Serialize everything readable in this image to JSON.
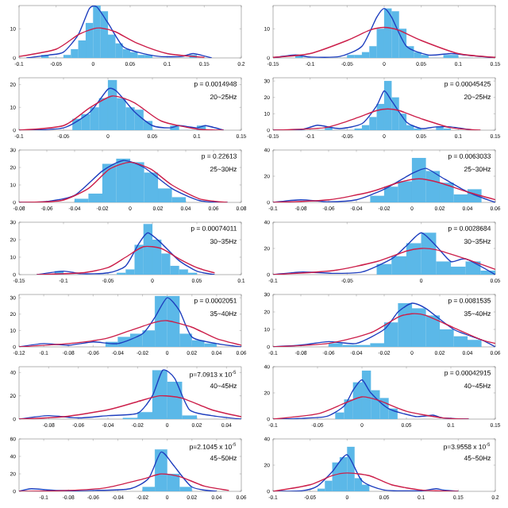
{
  "chart_data": [
    {
      "type": "histogram",
      "color": "#5bb8e8",
      "xlim": [
        -0.1,
        0.2
      ],
      "xticks": [
        -0.1,
        -0.05,
        0,
        0.05,
        0.1,
        0.15,
        0.2
      ],
      "ylim": [
        0,
        18
      ],
      "yticks": [
        0,
        10
      ],
      "bins": [
        -0.07,
        -0.06,
        -0.05,
        -0.04,
        -0.03,
        -0.02,
        -0.01,
        0,
        0.01,
        0.02,
        0.03,
        0.04,
        0.05,
        0.06,
        0.07,
        0.08,
        0.09,
        0.1,
        0.11,
        0.12,
        0.13,
        0.14
      ],
      "values": [
        1,
        0,
        0,
        1,
        3,
        6,
        12,
        18,
        16,
        8,
        5,
        3,
        2,
        1,
        1,
        0,
        0,
        0,
        0,
        0,
        1
      ],
      "series": [
        {
          "type": "line",
          "color": "#1f3fbf",
          "x": [
            -0.09,
            -0.06,
            -0.04,
            -0.02,
            -0.005,
            0.005,
            0.02,
            0.04,
            0.06,
            0.09,
            0.12,
            0.135,
            0.16
          ],
          "values": [
            0,
            1,
            2,
            8,
            17,
            17.5,
            12,
            4,
            2,
            0.5,
            0.5,
            1.5,
            0
          ]
        },
        {
          "type": "line",
          "color": "#cc1f4a",
          "x": [
            -0.1,
            -0.05,
            -0.02,
            0,
            0.01,
            0.03,
            0.06,
            0.1,
            0.15
          ],
          "values": [
            0.5,
            3,
            8,
            10,
            10.3,
            9,
            5,
            1.5,
            0.2
          ]
        }
      ]
    },
    {
      "type": "histogram",
      "color": "#5bb8e8",
      "xlim": [
        -0.15,
        0.15
      ],
      "xticks": [
        -0.15,
        -0.1,
        -0.05,
        0,
        0.05,
        0.1,
        0.15
      ],
      "ylim": [
        0,
        18
      ],
      "yticks": [
        0,
        10
      ],
      "bins": [
        -0.12,
        -0.11,
        -0.1,
        -0.09,
        -0.08,
        -0.07,
        -0.06,
        -0.05,
        -0.04,
        -0.03,
        -0.02,
        -0.01,
        0,
        0.01,
        0.02,
        0.03,
        0.04,
        0.05,
        0.06,
        0.07,
        0.08,
        0.09,
        0.1,
        0.11,
        0.12
      ],
      "values": [
        1,
        0,
        0,
        0,
        0,
        0,
        0,
        1,
        1,
        2,
        4,
        10,
        17,
        16,
        10,
        4,
        2,
        1,
        0,
        0,
        1,
        1,
        0,
        0
      ],
      "series": [
        {
          "type": "line",
          "color": "#1f3fbf",
          "x": [
            -0.15,
            -0.12,
            -0.1,
            -0.06,
            -0.03,
            -0.01,
            0,
            0.01,
            0.03,
            0.06,
            0.09,
            0.11,
            0.15
          ],
          "values": [
            0,
            1,
            0.3,
            0.5,
            4,
            14,
            17,
            14,
            4,
            1,
            1.5,
            1,
            0
          ]
        },
        {
          "type": "line",
          "color": "#cc1f4a",
          "x": [
            -0.15,
            -0.1,
            -0.05,
            -0.02,
            0,
            0.02,
            0.05,
            0.1,
            0.15
          ],
          "values": [
            0.2,
            1.5,
            6,
            9.5,
            10.5,
            9.5,
            6,
            1.5,
            0.2
          ]
        }
      ]
    },
    {
      "type": "histogram",
      "color": "#5bb8e8",
      "xlim": [
        -0.1,
        0.15
      ],
      "xticks": [
        -0.1,
        -0.05,
        0,
        0.05,
        0.1,
        0.15
      ],
      "ylim": [
        0,
        23
      ],
      "yticks": [
        0,
        10,
        20
      ],
      "annotations": [
        "p = 0.0014948",
        "20~25Hz"
      ],
      "bins": [
        -0.04,
        -0.03,
        -0.02,
        -0.01,
        0,
        0.01,
        0.02,
        0.03,
        0.04,
        0.05,
        0.06,
        0.07,
        0.08,
        0.09,
        0.1,
        0.11
      ],
      "values": [
        5,
        7,
        10,
        14,
        22,
        14,
        10,
        9,
        4,
        0,
        0,
        2,
        0,
        0,
        2
      ],
      "series": [
        {
          "type": "line",
          "color": "#1f3fbf",
          "x": [
            -0.1,
            -0.05,
            -0.02,
            0,
            0.01,
            0.03,
            0.05,
            0.07,
            0.08,
            0.1,
            0.11,
            0.13
          ],
          "values": [
            0,
            1,
            8,
            18,
            17,
            8,
            2,
            1,
            2,
            1,
            2,
            0
          ]
        },
        {
          "type": "line",
          "color": "#cc1f4a",
          "x": [
            -0.1,
            -0.05,
            -0.02,
            0.005,
            0.03,
            0.06,
            0.1,
            0.13
          ],
          "values": [
            0,
            2,
            10,
            15,
            12,
            4,
            0.5,
            0
          ]
        }
      ]
    },
    {
      "type": "histogram",
      "color": "#5bb8e8",
      "xlim": [
        -0.15,
        0.15
      ],
      "xticks": [
        -0.15,
        -0.1,
        -0.05,
        0,
        0.05,
        0.1,
        0.15
      ],
      "ylim": [
        0,
        32
      ],
      "yticks": [
        0,
        10,
        20,
        30
      ],
      "annotations": [
        "p = 0.00045425",
        "20~25Hz"
      ],
      "bins": [
        -0.09,
        -0.08,
        -0.07,
        -0.06,
        -0.05,
        -0.04,
        -0.03,
        -0.02,
        -0.01,
        0,
        0.01,
        0.02,
        0.03,
        0.04,
        0.05,
        0.06,
        0.07,
        0.08,
        0.09
      ],
      "values": [
        0,
        2,
        0,
        0,
        0,
        1,
        3,
        8,
        16,
        30,
        20,
        10,
        3,
        1,
        0,
        0,
        2,
        1
      ],
      "series": [
        {
          "type": "line",
          "color": "#1f3fbf",
          "x": [
            -0.15,
            -0.11,
            -0.09,
            -0.06,
            -0.03,
            -0.01,
            0,
            0.01,
            0.03,
            0.05,
            0.07,
            0.09,
            0.12
          ],
          "values": [
            0,
            0.5,
            3,
            1,
            4,
            15,
            24,
            18,
            5,
            1,
            2,
            2,
            0
          ]
        },
        {
          "type": "line",
          "color": "#cc1f4a",
          "x": [
            -0.15,
            -0.08,
            -0.04,
            -0.01,
            0.005,
            0.02,
            0.05,
            0.09,
            0.13
          ],
          "values": [
            0,
            1.5,
            7,
            12,
            13,
            12,
            7,
            1.5,
            0
          ]
        }
      ]
    },
    {
      "type": "histogram",
      "color": "#5bb8e8",
      "xlim": [
        -0.08,
        0.08
      ],
      "xticks": [
        -0.08,
        -0.06,
        -0.04,
        -0.02,
        0,
        0.02,
        0.04,
        0.06,
        0.08
      ],
      "ylim": [
        0,
        30
      ],
      "yticks": [
        0,
        10,
        20,
        30
      ],
      "annotations": [
        "p = 0.22613",
        "25~30Hz"
      ],
      "bins": [
        -0.04,
        -0.03,
        -0.02,
        -0.01,
        0,
        0.01,
        0.02,
        0.03,
        0.04
      ],
      "values": [
        2,
        5,
        22,
        25,
        23,
        17,
        8,
        3
      ],
      "series": [
        {
          "type": "line",
          "color": "#1f3fbf",
          "x": [
            -0.08,
            -0.06,
            -0.04,
            -0.02,
            -0.005,
            0.01,
            0.03,
            0.05,
            0.07
          ],
          "values": [
            0,
            0.5,
            4,
            18,
            24,
            20,
            8,
            1,
            0
          ]
        },
        {
          "type": "line",
          "color": "#cc1f4a",
          "x": [
            -0.08,
            -0.05,
            -0.03,
            -0.015,
            0,
            0.015,
            0.03,
            0.05,
            0.07
          ],
          "values": [
            0,
            1,
            8,
            19,
            23,
            19,
            10,
            2,
            0
          ]
        }
      ]
    },
    {
      "type": "histogram",
      "color": "#5bb8e8",
      "xlim": [
        -0.1,
        0.06
      ],
      "xticks": [
        -0.1,
        -0.08,
        -0.06,
        -0.04,
        -0.02,
        0,
        0.02,
        0.04,
        0.06
      ],
      "ylim": [
        0,
        40
      ],
      "yticks": [
        0,
        20,
        40
      ],
      "annotations": [
        "p = 0.0063033",
        "25~30Hz"
      ],
      "bins": [
        -0.03,
        -0.02,
        -0.01,
        0,
        0.01,
        0.02,
        0.03,
        0.04,
        0.05
      ],
      "values": [
        5,
        12,
        16,
        34,
        24,
        15,
        6,
        10
      ],
      "series": [
        {
          "type": "line",
          "color": "#1f3fbf",
          "x": [
            -0.1,
            -0.08,
            -0.06,
            -0.04,
            -0.02,
            0,
            0.01,
            0.02,
            0.04,
            0.06
          ],
          "values": [
            0,
            2,
            0.5,
            2,
            10,
            22,
            26,
            20,
            8,
            0
          ]
        },
        {
          "type": "line",
          "color": "#cc1f4a",
          "x": [
            -0.1,
            -0.06,
            -0.03,
            -0.01,
            0.005,
            0.02,
            0.04,
            0.06
          ],
          "values": [
            0,
            2,
            8,
            15,
            18,
            15,
            8,
            2
          ]
        }
      ]
    },
    {
      "type": "histogram",
      "color": "#5bb8e8",
      "xlim": [
        -0.15,
        0.1
      ],
      "xticks": [
        -0.15,
        -0.1,
        -0.05,
        0,
        0.05,
        0.1
      ],
      "ylim": [
        0,
        30
      ],
      "yticks": [
        0,
        10,
        20,
        30
      ],
      "annotations": [
        "p = 0.00074011",
        "30~35Hz"
      ],
      "bins": [
        -0.11,
        -0.1,
        -0.09,
        -0.08,
        -0.07,
        -0.06,
        -0.05,
        -0.04,
        -0.03,
        -0.02,
        -0.01,
        0,
        0.01,
        0.02,
        0.03,
        0.04,
        0.05
      ],
      "values": [
        2,
        0,
        0,
        0,
        0,
        0,
        0,
        1,
        3,
        17,
        29,
        20,
        12,
        5,
        3,
        1
      ],
      "series": [
        {
          "type": "line",
          "color": "#1f3fbf",
          "x": [
            -0.13,
            -0.1,
            -0.08,
            -0.05,
            -0.03,
            -0.015,
            -0.005,
            0.01,
            0.03,
            0.05,
            0.07
          ],
          "values": [
            0,
            2,
            0.5,
            1,
            5,
            18,
            24,
            18,
            8,
            2,
            0
          ]
        },
        {
          "type": "line",
          "color": "#cc1f4a",
          "x": [
            -0.13,
            -0.08,
            -0.05,
            -0.03,
            -0.01,
            0.01,
            0.03,
            0.05,
            0.07
          ],
          "values": [
            0,
            1,
            4,
            10,
            16,
            15,
            9,
            4,
            1
          ]
        }
      ]
    },
    {
      "type": "histogram",
      "color": "#5bb8e8",
      "xlim": [
        -0.1,
        0.05
      ],
      "xticks": [
        -0.1,
        -0.05,
        0,
        0.05
      ],
      "ylim": [
        0,
        40
      ],
      "yticks": [
        0,
        20,
        40
      ],
      "annotations": [
        "p = 0.0028684",
        "30~35Hz"
      ],
      "bins": [
        -0.03,
        -0.02,
        -0.01,
        0,
        0.01,
        0.02,
        0.03,
        0.04,
        0.05
      ],
      "values": [
        8,
        14,
        24,
        32,
        10,
        6,
        10,
        3
      ],
      "series": [
        {
          "type": "line",
          "color": "#1f3fbf",
          "x": [
            -0.1,
            -0.08,
            -0.06,
            -0.04,
            -0.02,
            -0.01,
            0,
            0.01,
            0.02,
            0.03,
            0.05
          ],
          "values": [
            0,
            2,
            1,
            2,
            12,
            22,
            32,
            22,
            10,
            12,
            0
          ]
        },
        {
          "type": "line",
          "color": "#cc1f4a",
          "x": [
            -0.1,
            -0.06,
            -0.03,
            -0.01,
            0,
            0.01,
            0.03,
            0.05
          ],
          "values": [
            0,
            3,
            10,
            18,
            20,
            19,
            12,
            4
          ]
        }
      ]
    },
    {
      "type": "histogram",
      "color": "#5bb8e8",
      "xlim": [
        -0.12,
        0.06
      ],
      "xticks": [
        -0.12,
        -0.1,
        -0.08,
        -0.06,
        -0.04,
        -0.02,
        0,
        0.02,
        0.04,
        0.06
      ],
      "ylim": [
        0,
        32
      ],
      "yticks": [
        0,
        10,
        20,
        30
      ],
      "annotations": [
        "p = 0.0002051",
        "35~40Hz"
      ],
      "bins": [
        -0.05,
        -0.04,
        -0.03,
        -0.02,
        -0.01,
        0,
        0.01,
        0.02,
        0.03,
        0.04
      ],
      "values": [
        3,
        6,
        8,
        10,
        31,
        31,
        8,
        4,
        2
      ],
      "series": [
        {
          "type": "line",
          "color": "#1f3fbf",
          "x": [
            -0.12,
            -0.1,
            -0.08,
            -0.06,
            -0.04,
            -0.02,
            -0.01,
            0,
            0.01,
            0.02,
            0.04,
            0.06
          ],
          "values": [
            0,
            2,
            1,
            3,
            2,
            8,
            18,
            30,
            22,
            6,
            2,
            0
          ]
        },
        {
          "type": "line",
          "color": "#cc1f4a",
          "x": [
            -0.12,
            -0.08,
            -0.05,
            -0.03,
            -0.01,
            0,
            0.02,
            0.04,
            0.06
          ],
          "values": [
            0,
            2,
            5,
            10,
            15,
            16,
            12,
            5,
            1
          ]
        }
      ]
    },
    {
      "type": "histogram",
      "color": "#5bb8e8",
      "xlim": [
        -0.1,
        0.06
      ],
      "xticks": [
        -0.1,
        -0.08,
        -0.06,
        -0.04,
        -0.02,
        0,
        0.02,
        0.04,
        0.06
      ],
      "ylim": [
        0,
        30
      ],
      "yticks": [
        0,
        10,
        20,
        30
      ],
      "annotations": [
        "p = 0.0081535",
        "35~40Hz"
      ],
      "bins": [
        -0.06,
        -0.05,
        -0.04,
        -0.03,
        -0.02,
        -0.01,
        0,
        0.01,
        0.02,
        0.03,
        0.04,
        0.05
      ],
      "values": [
        2,
        1,
        1,
        2,
        14,
        25,
        22,
        18,
        10,
        6,
        4
      ],
      "series": [
        {
          "type": "line",
          "color": "#1f3fbf",
          "x": [
            -0.1,
            -0.08,
            -0.06,
            -0.04,
            -0.02,
            -0.01,
            0,
            0.01,
            0.03,
            0.05,
            0.06
          ],
          "values": [
            0,
            1,
            3,
            2,
            10,
            20,
            25,
            22,
            10,
            4,
            0
          ]
        },
        {
          "type": "line",
          "color": "#cc1f4a",
          "x": [
            -0.1,
            -0.06,
            -0.03,
            -0.01,
            0,
            0.01,
            0.03,
            0.05,
            0.06
          ],
          "values": [
            0,
            2,
            8,
            17,
            19,
            18,
            11,
            4,
            2
          ]
        }
      ]
    },
    {
      "type": "histogram",
      "color": "#5bb8e8",
      "xlim": [
        -0.1,
        0.05
      ],
      "xticks": [
        -0.08,
        -0.06,
        -0.04,
        -0.02,
        0,
        0.02,
        0.04
      ],
      "ylim": [
        0,
        45
      ],
      "yticks": [
        0,
        20,
        40
      ],
      "annotations": [
        "p=7.0913 x 10$^{-5}$",
        "40~45Hz"
      ],
      "bins": [
        -0.03,
        -0.02,
        -0.01,
        0,
        0.01,
        0.02
      ],
      "values": [
        1,
        6,
        42,
        32,
        3
      ],
      "series": [
        {
          "type": "line",
          "color": "#1f3fbf",
          "x": [
            -0.1,
            -0.08,
            -0.06,
            -0.04,
            -0.02,
            -0.01,
            -0.003,
            0.005,
            0.015,
            0.03,
            0.05
          ],
          "values": [
            0,
            3,
            1,
            3,
            5,
            20,
            42,
            35,
            8,
            3,
            0
          ]
        },
        {
          "type": "line",
          "color": "#cc1f4a",
          "x": [
            -0.1,
            -0.07,
            -0.04,
            -0.02,
            -0.005,
            0.01,
            0.03,
            0.05
          ],
          "values": [
            0,
            2,
            8,
            15,
            20,
            18,
            8,
            2
          ]
        }
      ]
    },
    {
      "type": "histogram",
      "color": "#5bb8e8",
      "xlim": [
        -0.1,
        0.15
      ],
      "xticks": [
        -0.1,
        -0.05,
        0,
        0.05,
        0.1,
        0.15
      ],
      "ylim": [
        0,
        40
      ],
      "yticks": [
        0,
        20,
        40
      ],
      "annotations": [
        "p = 0.00042915",
        "40~45Hz"
      ],
      "bins": [
        -0.03,
        -0.02,
        -0.01,
        0,
        0.01,
        0.02,
        0.03,
        0.04
      ],
      "values": [
        5,
        15,
        28,
        37,
        22,
        16,
        8
      ],
      "series": [
        {
          "type": "line",
          "color": "#1f3fbf",
          "x": [
            -0.1,
            -0.07,
            -0.04,
            -0.02,
            -0.01,
            0,
            0.01,
            0.03,
            0.06,
            0.08,
            0.09,
            0.12
          ],
          "values": [
            0,
            0.5,
            2,
            10,
            22,
            30,
            20,
            8,
            2,
            3,
            1,
            0
          ]
        },
        {
          "type": "line",
          "color": "#cc1f4a",
          "x": [
            -0.1,
            -0.05,
            -0.02,
            0,
            0.02,
            0.05,
            0.09,
            0.12
          ],
          "values": [
            0,
            4,
            12,
            17,
            14,
            6,
            1,
            0
          ]
        }
      ]
    },
    {
      "type": "histogram",
      "color": "#5bb8e8",
      "xlim": [
        -0.12,
        0.06
      ],
      "xticks": [
        -0.1,
        -0.08,
        -0.06,
        -0.04,
        -0.02,
        0,
        0.02,
        0.04,
        0.06
      ],
      "ylim": [
        0,
        60
      ],
      "yticks": [
        0,
        20,
        40,
        60
      ],
      "annotations": [
        "p=2.1045 x 10$^{-5}$",
        "45~50Hz"
      ],
      "bins": [
        -0.02,
        -0.01,
        0,
        0.01,
        0.02
      ],
      "values": [
        5,
        48,
        20,
        5
      ],
      "series": [
        {
          "type": "line",
          "color": "#1f3fbf",
          "x": [
            -0.12,
            -0.11,
            -0.09,
            -0.06,
            -0.03,
            -0.015,
            -0.005,
            0.005,
            0.02,
            0.04
          ],
          "values": [
            0,
            3,
            1,
            1,
            3,
            15,
            45,
            30,
            5,
            0
          ]
        },
        {
          "type": "line",
          "color": "#cc1f4a",
          "x": [
            -0.12,
            -0.08,
            -0.05,
            -0.02,
            -0.005,
            0.01,
            0.03,
            0.05
          ],
          "values": [
            0,
            1,
            4,
            14,
            20,
            17,
            6,
            1
          ]
        }
      ]
    },
    {
      "type": "histogram",
      "color": "#5bb8e8",
      "xlim": [
        -0.1,
        0.2
      ],
      "xticks": [
        -0.1,
        -0.05,
        0,
        0.05,
        0.1,
        0.15,
        0.2
      ],
      "ylim": [
        0,
        40
      ],
      "yticks": [
        0,
        20,
        40
      ],
      "annotations": [
        "p=3.9558 x 10$^{-5}$",
        "45~50Hz"
      ],
      "bins": [
        -0.04,
        -0.03,
        -0.02,
        -0.01,
        0,
        0.01,
        0.02,
        0.03
      ],
      "values": [
        2,
        8,
        22,
        26,
        34,
        10,
        5
      ],
      "series": [
        {
          "type": "line",
          "color": "#1f3fbf",
          "x": [
            -0.1,
            -0.06,
            -0.04,
            -0.02,
            0,
            0.02,
            0.05,
            0.1,
            0.12,
            0.13,
            0.15
          ],
          "values": [
            0,
            0.5,
            4,
            15,
            28,
            8,
            1,
            0.5,
            2,
            1,
            0
          ]
        },
        {
          "type": "line",
          "color": "#cc1f4a",
          "x": [
            -0.1,
            -0.05,
            -0.02,
            0,
            0.03,
            0.06,
            0.1,
            0.15
          ],
          "values": [
            0,
            5,
            12,
            14,
            12,
            5,
            1,
            0
          ]
        }
      ]
    }
  ]
}
